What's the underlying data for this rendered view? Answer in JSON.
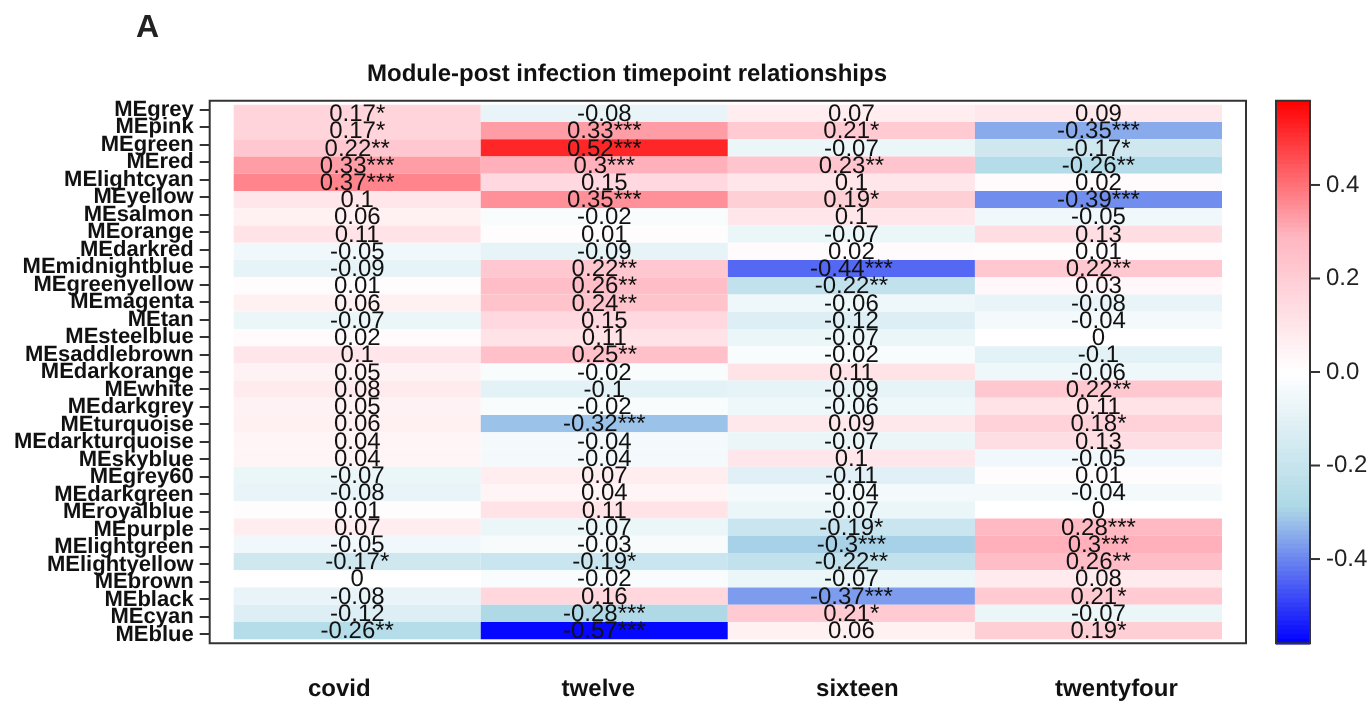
{
  "chart_data": {
    "type": "heatmap",
    "title": "Module-post infection timepoint relationships",
    "annotations": [
      "A"
    ],
    "categories": [
      "covid",
      "twelve",
      "sixteen",
      "twentyfour"
    ],
    "y_categories": [
      "MEgrey",
      "MEpink",
      "MEgreen",
      "MEred",
      "MElightcyan",
      "MEyellow",
      "MEsalmon",
      "MEorange",
      "MEdarkred",
      "MEmidnightblue",
      "MEgreenyellow",
      "MEmagenta",
      "MEtan",
      "MEsteelblue",
      "MEsaddlebrown",
      "MEdarkorange",
      "MEwhite",
      "MEdarkgrey",
      "MEturquoise",
      "MEdarkturquoise",
      "MEskyblue",
      "MEgrey60",
      "MEdarkgreen",
      "MEroyalblue",
      "MEpurple",
      "MElightgreen",
      "MElightyellow",
      "MEbrown",
      "MEblack",
      "MEcyan",
      "MEblue"
    ],
    "cells": [
      [
        0.17,
        -0.08,
        0.07,
        0.09
      ],
      [
        0.17,
        0.33,
        0.21,
        -0.35
      ],
      [
        0.22,
        0.52,
        -0.07,
        -0.17
      ],
      [
        0.33,
        0.3,
        0.23,
        -0.26
      ],
      [
        0.37,
        0.15,
        0.1,
        0.02
      ],
      [
        0.1,
        0.35,
        0.19,
        -0.39
      ],
      [
        0.06,
        -0.02,
        0.1,
        -0.05
      ],
      [
        0.11,
        0.01,
        -0.07,
        0.13
      ],
      [
        -0.05,
        -0.09,
        0.02,
        0.01
      ],
      [
        -0.09,
        0.22,
        -0.44,
        0.22
      ],
      [
        0.01,
        0.26,
        -0.22,
        0.03
      ],
      [
        0.06,
        0.24,
        -0.06,
        -0.08
      ],
      [
        -0.07,
        0.15,
        -0.12,
        -0.04
      ],
      [
        0.02,
        0.11,
        -0.07,
        0
      ],
      [
        0.1,
        0.25,
        -0.02,
        -0.1
      ],
      [
        0.05,
        -0.02,
        0.11,
        -0.06
      ],
      [
        0.08,
        -0.1,
        -0.09,
        0.22
      ],
      [
        0.05,
        -0.02,
        -0.06,
        0.11
      ],
      [
        0.06,
        -0.32,
        0.09,
        0.18
      ],
      [
        0.04,
        -0.04,
        -0.07,
        0.13
      ],
      [
        0.04,
        -0.04,
        0.1,
        -0.05
      ],
      [
        -0.07,
        0.07,
        -0.11,
        0.01
      ],
      [
        -0.08,
        0.04,
        -0.04,
        -0.04
      ],
      [
        0.01,
        0.11,
        -0.07,
        0
      ],
      [
        0.07,
        -0.07,
        -0.19,
        0.28
      ],
      [
        -0.05,
        -0.03,
        -0.3,
        0.3
      ],
      [
        -0.17,
        -0.19,
        -0.22,
        0.26
      ],
      [
        0,
        -0.02,
        -0.07,
        0.08
      ],
      [
        -0.08,
        0.16,
        -0.37,
        0.21
      ],
      [
        -0.12,
        -0.28,
        0.21,
        -0.07
      ],
      [
        -0.26,
        -0.57,
        0.06,
        0.19
      ]
    ],
    "cell_labels": [
      [
        "0.17*",
        "-0.08",
        "0.07",
        "0.09"
      ],
      [
        "0.17*",
        "0.33***",
        "0.21*",
        "-0.35***"
      ],
      [
        "0.22**",
        "0.52***",
        "-0.07",
        "-0.17*"
      ],
      [
        "0.33***",
        "0.3***",
        "0.23**",
        "-0.26**"
      ],
      [
        "0.37***",
        "0.15",
        "0.1",
        "0.02"
      ],
      [
        "0.1",
        "0.35***",
        "0.19*",
        "-0.39***"
      ],
      [
        "0.06",
        "-0.02",
        "0.1",
        "-0.05"
      ],
      [
        "0.11",
        "0.01",
        "-0.07",
        "0.13"
      ],
      [
        "-0.05",
        "-0.09",
        "0.02",
        "0.01"
      ],
      [
        "-0.09",
        "0.22**",
        "-0.44***",
        "0.22**"
      ],
      [
        "0.01",
        "0.26**",
        "-0.22**",
        "0.03"
      ],
      [
        "0.06",
        "0.24**",
        "-0.06",
        "-0.08"
      ],
      [
        "-0.07",
        "0.15",
        "-0.12",
        "-0.04"
      ],
      [
        "0.02",
        "0.11",
        "-0.07",
        "0"
      ],
      [
        "0.1",
        "0.25**",
        "-0.02",
        "-0.1"
      ],
      [
        "0.05",
        "-0.02",
        "0.11",
        "-0.06"
      ],
      [
        "0.08",
        "-0.1",
        "-0.09",
        "0.22**"
      ],
      [
        "0.05",
        "-0.02",
        "-0.06",
        "0.11"
      ],
      [
        "0.06",
        "-0.32***",
        "0.09",
        "0.18*"
      ],
      [
        "0.04",
        "-0.04",
        "-0.07",
        "0.13"
      ],
      [
        "0.04",
        "-0.04",
        "0.1",
        "-0.05"
      ],
      [
        "-0.07",
        "0.07",
        "-0.11",
        "0.01"
      ],
      [
        "-0.08",
        "0.04",
        "-0.04",
        "-0.04"
      ],
      [
        "0.01",
        "0.11",
        "-0.07",
        "0"
      ],
      [
        "0.07",
        "-0.07",
        "-0.19*",
        "0.28***"
      ],
      [
        "-0.05",
        "-0.03",
        "-0.3***",
        "0.3***"
      ],
      [
        "-0.17*",
        "-0.19*",
        "-0.22**",
        "0.26**"
      ],
      [
        "0",
        "-0.02",
        "-0.07",
        "0.08"
      ],
      [
        "-0.08",
        "0.16",
        "-0.37***",
        "0.21*"
      ],
      [
        "-0.12",
        "-0.28***",
        "0.21*",
        "-0.07"
      ],
      [
        "-0.26**",
        "-0.57***",
        "0.06",
        "0.19*"
      ]
    ],
    "clim": [
      -0.58,
      0.58
    ],
    "cticks": [
      -0.4,
      -0.2,
      {
        "value": 0,
        "label": "0.0"
      },
      0.2,
      0.4
    ]
  }
}
